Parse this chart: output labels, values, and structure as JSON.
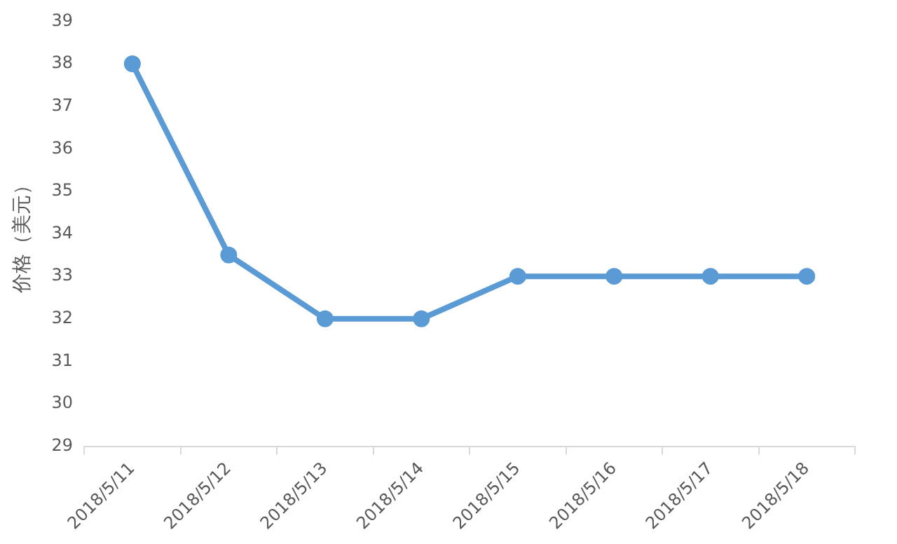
{
  "chart_data": {
    "type": "line",
    "ylabel": "价格（美元）",
    "categories": [
      "2018/5/11",
      "2018/5/12",
      "2018/5/13",
      "2018/5/14",
      "2018/5/15",
      "2018/5/16",
      "2018/5/17",
      "2018/5/18"
    ],
    "series": [
      {
        "color": "#5b9bd5",
        "values": [
          38,
          33.5,
          32,
          32,
          33,
          33,
          33,
          33
        ]
      }
    ],
    "ylim": [
      29,
      39
    ],
    "yticks": [
      29,
      30,
      31,
      32,
      33,
      34,
      35,
      36,
      37,
      38,
      39
    ],
    "grid": false,
    "legend": false,
    "marker": "circle",
    "line_style": "solid"
  }
}
